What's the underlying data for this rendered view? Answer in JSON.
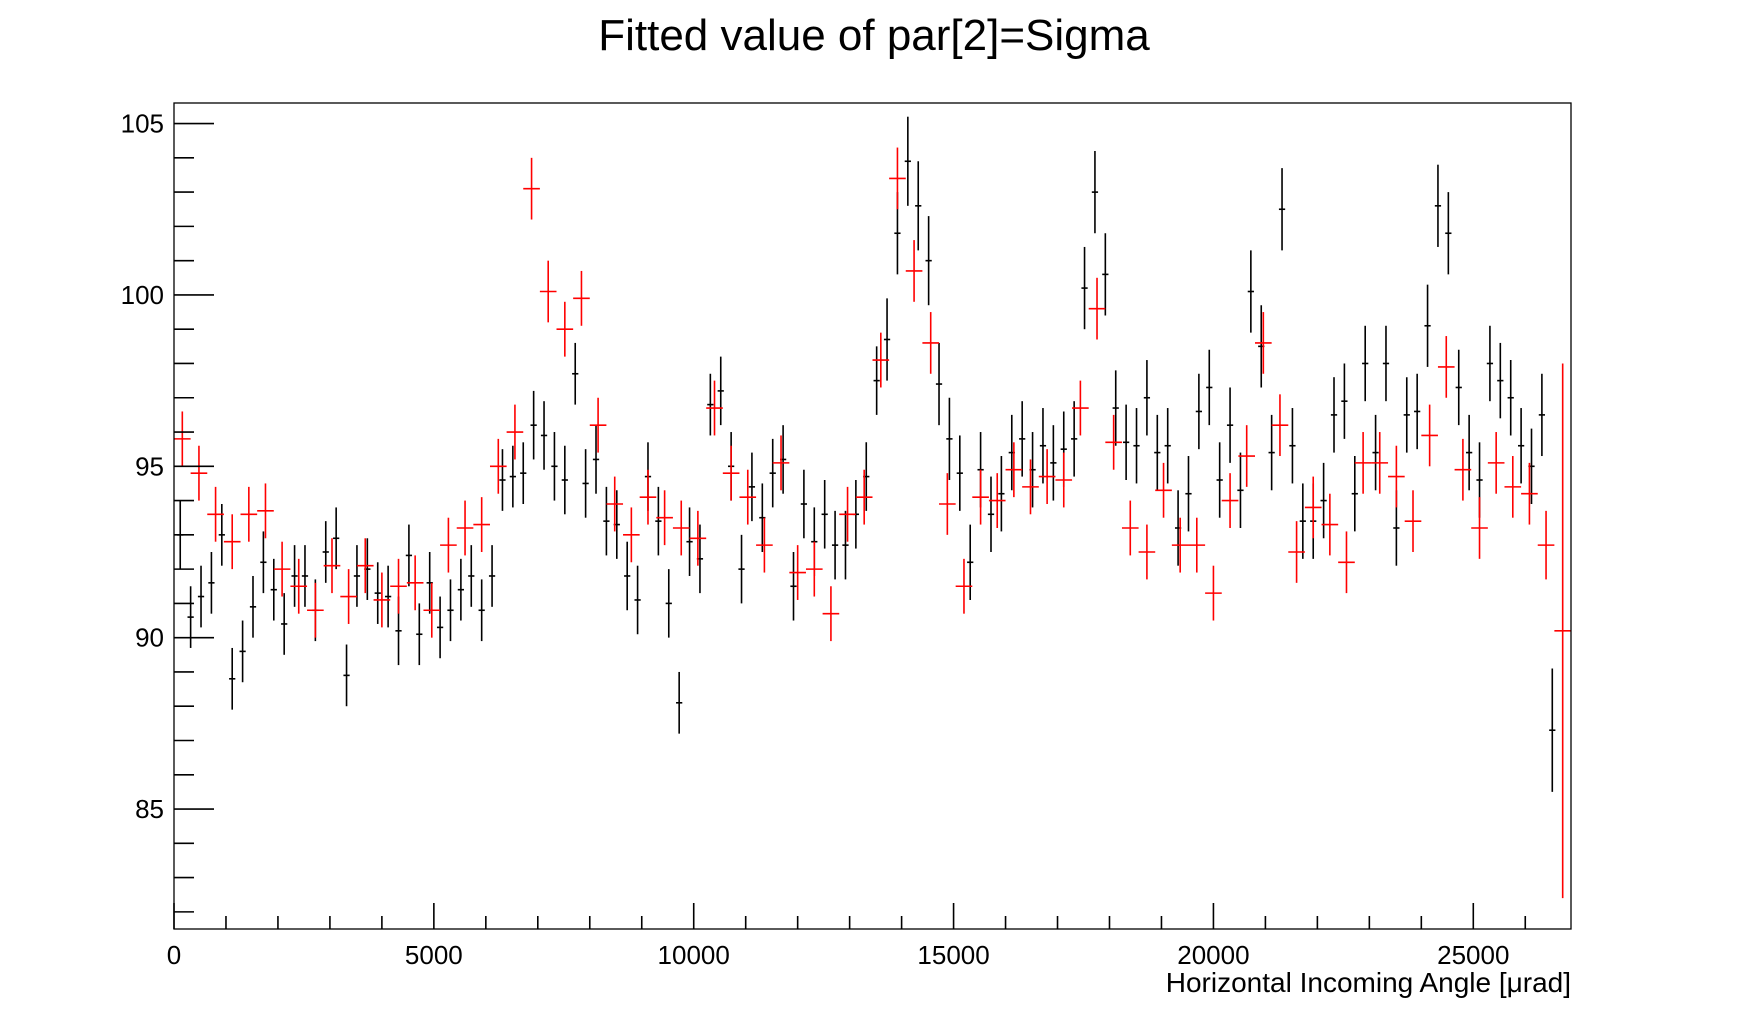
{
  "chart_data": {
    "type": "scatter",
    "title": "Fitted value of par[2]=Sigma",
    "xlabel": "Horizontal Incoming Angle [μrad]",
    "ylabel": "",
    "xlim": [
      0,
      26880
    ],
    "ylim": [
      81.5,
      105.6
    ],
    "x_ticks": [
      0,
      5000,
      10000,
      15000,
      20000,
      25000
    ],
    "y_ticks": [
      85,
      90,
      95,
      100,
      105
    ],
    "grid": false,
    "legend": "none",
    "series": [
      {
        "color": "#000000",
        "x_err": 60,
        "points": [
          [
            120,
            93.0,
            1.0
          ],
          [
            320,
            90.6,
            0.9
          ],
          [
            520,
            91.2,
            0.9
          ],
          [
            720,
            91.6,
            0.9
          ],
          [
            920,
            93.0,
            0.9
          ],
          [
            1120,
            88.8,
            0.9
          ],
          [
            1320,
            89.6,
            0.9
          ],
          [
            1520,
            90.9,
            0.9
          ],
          [
            1720,
            92.2,
            0.9
          ],
          [
            1920,
            91.4,
            0.9
          ],
          [
            2120,
            90.4,
            0.9
          ],
          [
            2320,
            91.8,
            0.9
          ],
          [
            2520,
            91.8,
            0.9
          ],
          [
            2720,
            90.8,
            0.9
          ],
          [
            2920,
            92.5,
            0.9
          ],
          [
            3120,
            92.9,
            0.9
          ],
          [
            3320,
            88.9,
            0.9
          ],
          [
            3520,
            91.8,
            0.9
          ],
          [
            3720,
            92.0,
            0.9
          ],
          [
            3920,
            91.3,
            0.9
          ],
          [
            4120,
            91.2,
            0.9
          ],
          [
            4320,
            90.2,
            1.0
          ],
          [
            4520,
            92.4,
            0.9
          ],
          [
            4720,
            90.1,
            0.9
          ],
          [
            4920,
            91.6,
            0.9
          ],
          [
            5120,
            90.3,
            0.9
          ],
          [
            5320,
            90.8,
            0.9
          ],
          [
            5520,
            91.4,
            0.9
          ],
          [
            5720,
            91.8,
            0.9
          ],
          [
            5920,
            90.8,
            0.9
          ],
          [
            6120,
            91.8,
            0.9
          ],
          [
            6320,
            94.6,
            0.9
          ],
          [
            6520,
            94.7,
            0.9
          ],
          [
            6720,
            94.8,
            0.9
          ],
          [
            6920,
            96.2,
            1.0
          ],
          [
            7120,
            95.9,
            1.0
          ],
          [
            7320,
            95.0,
            1.0
          ],
          [
            7520,
            94.6,
            1.0
          ],
          [
            7720,
            97.7,
            0.9
          ],
          [
            7920,
            94.5,
            1.0
          ],
          [
            8120,
            95.2,
            1.0
          ],
          [
            8320,
            93.4,
            1.0
          ],
          [
            8520,
            93.3,
            1.0
          ],
          [
            8720,
            91.8,
            1.0
          ],
          [
            8920,
            91.1,
            1.0
          ],
          [
            9120,
            94.7,
            1.0
          ],
          [
            9320,
            93.4,
            1.0
          ],
          [
            9520,
            91.0,
            1.0
          ],
          [
            9720,
            88.1,
            0.9
          ],
          [
            9920,
            92.8,
            1.0
          ],
          [
            10120,
            92.3,
            1.0
          ],
          [
            10320,
            96.8,
            0.9
          ],
          [
            10520,
            97.2,
            1.0
          ],
          [
            10720,
            95.0,
            1.0
          ],
          [
            10920,
            92.0,
            1.0
          ],
          [
            11120,
            94.4,
            1.0
          ],
          [
            11320,
            93.5,
            1.0
          ],
          [
            11520,
            94.8,
            1.0
          ],
          [
            11720,
            95.2,
            1.0
          ],
          [
            11920,
            91.5,
            1.0
          ],
          [
            12120,
            93.9,
            1.0
          ],
          [
            12320,
            92.8,
            1.0
          ],
          [
            12520,
            93.6,
            1.0
          ],
          [
            12720,
            92.7,
            1.0
          ],
          [
            12920,
            92.7,
            1.0
          ],
          [
            13120,
            93.6,
            1.0
          ],
          [
            13320,
            94.7,
            1.0
          ],
          [
            13520,
            97.5,
            1.0
          ],
          [
            13720,
            98.7,
            1.2
          ],
          [
            13920,
            101.8,
            1.2
          ],
          [
            14120,
            103.9,
            1.3
          ],
          [
            14320,
            102.6,
            1.3
          ],
          [
            14520,
            101.0,
            1.3
          ],
          [
            14720,
            97.4,
            1.2
          ],
          [
            14920,
            95.8,
            1.2
          ],
          [
            15120,
            94.8,
            1.1
          ],
          [
            15320,
            92.2,
            1.1
          ],
          [
            15520,
            94.9,
            1.1
          ],
          [
            15720,
            93.6,
            1.1
          ],
          [
            15920,
            94.2,
            1.1
          ],
          [
            16120,
            95.4,
            1.1
          ],
          [
            16320,
            95.8,
            1.1
          ],
          [
            16520,
            94.9,
            1.1
          ],
          [
            16720,
            95.6,
            1.1
          ],
          [
            16920,
            95.1,
            1.1
          ],
          [
            17120,
            95.5,
            1.1
          ],
          [
            17320,
            95.8,
            1.1
          ],
          [
            17520,
            100.2,
            1.2
          ],
          [
            17720,
            103.0,
            1.2
          ],
          [
            17920,
            100.6,
            1.2
          ],
          [
            18120,
            96.7,
            1.1
          ],
          [
            18320,
            95.7,
            1.1
          ],
          [
            18520,
            95.6,
            1.1
          ],
          [
            18720,
            97.0,
            1.1
          ],
          [
            18920,
            95.4,
            1.1
          ],
          [
            19120,
            95.6,
            1.1
          ],
          [
            19320,
            93.2,
            1.1
          ],
          [
            19520,
            94.2,
            1.1
          ],
          [
            19720,
            96.6,
            1.1
          ],
          [
            19920,
            97.3,
            1.1
          ],
          [
            20120,
            94.6,
            1.1
          ],
          [
            20320,
            96.2,
            1.1
          ],
          [
            20520,
            94.3,
            1.1
          ],
          [
            20720,
            100.1,
            1.2
          ],
          [
            20920,
            98.5,
            1.2
          ],
          [
            21120,
            95.4,
            1.1
          ],
          [
            21320,
            102.5,
            1.2
          ],
          [
            21520,
            95.6,
            1.1
          ],
          [
            21720,
            93.4,
            1.1
          ],
          [
            21920,
            93.4,
            1.1
          ],
          [
            22120,
            94.0,
            1.1
          ],
          [
            22320,
            96.5,
            1.1
          ],
          [
            22520,
            96.9,
            1.1
          ],
          [
            22720,
            94.2,
            1.1
          ],
          [
            22920,
            98.0,
            1.1
          ],
          [
            23120,
            95.4,
            1.1
          ],
          [
            23320,
            98.0,
            1.1
          ],
          [
            23520,
            93.2,
            1.1
          ],
          [
            23720,
            96.5,
            1.1
          ],
          [
            23920,
            96.6,
            1.1
          ],
          [
            24120,
            99.1,
            1.2
          ],
          [
            24320,
            102.6,
            1.2
          ],
          [
            24520,
            101.8,
            1.2
          ],
          [
            24720,
            97.3,
            1.1
          ],
          [
            24920,
            95.4,
            1.1
          ],
          [
            25120,
            94.6,
            1.1
          ],
          [
            25320,
            98.0,
            1.1
          ],
          [
            25520,
            97.5,
            1.1
          ],
          [
            25720,
            97.0,
            1.1
          ],
          [
            25920,
            95.6,
            1.1
          ],
          [
            26120,
            95.0,
            1.1
          ],
          [
            26320,
            96.5,
            1.2
          ],
          [
            26520,
            87.3,
            1.8
          ]
        ]
      },
      {
        "color": "#ff0000",
        "x_err": 160,
        "points": [
          [
            160,
            95.8,
            0.8
          ],
          [
            480,
            94.8,
            0.8
          ],
          [
            800,
            93.6,
            0.8
          ],
          [
            1120,
            92.8,
            0.8
          ],
          [
            1440,
            93.6,
            0.8
          ],
          [
            1760,
            93.7,
            0.8
          ],
          [
            2080,
            92.0,
            0.8
          ],
          [
            2400,
            91.5,
            0.8
          ],
          [
            2720,
            90.8,
            0.8
          ],
          [
            3040,
            92.1,
            0.8
          ],
          [
            3360,
            91.2,
            0.8
          ],
          [
            3680,
            92.1,
            0.8
          ],
          [
            4000,
            91.1,
            0.8
          ],
          [
            4320,
            91.5,
            0.8
          ],
          [
            4640,
            91.6,
            0.8
          ],
          [
            4960,
            90.8,
            0.8
          ],
          [
            5280,
            92.7,
            0.8
          ],
          [
            5600,
            93.2,
            0.8
          ],
          [
            5920,
            93.3,
            0.8
          ],
          [
            6240,
            95.0,
            0.8
          ],
          [
            6560,
            96.0,
            0.8
          ],
          [
            6880,
            103.1,
            0.9
          ],
          [
            7200,
            100.1,
            0.9
          ],
          [
            7520,
            99.0,
            0.8
          ],
          [
            7840,
            99.9,
            0.8
          ],
          [
            8160,
            96.2,
            0.8
          ],
          [
            8480,
            93.9,
            0.8
          ],
          [
            8800,
            93.0,
            0.8
          ],
          [
            9120,
            94.1,
            0.8
          ],
          [
            9440,
            93.5,
            0.8
          ],
          [
            9760,
            93.2,
            0.8
          ],
          [
            10080,
            92.9,
            0.8
          ],
          [
            10400,
            96.7,
            0.8
          ],
          [
            10720,
            94.8,
            0.8
          ],
          [
            11040,
            94.1,
            0.8
          ],
          [
            11360,
            92.7,
            0.8
          ],
          [
            11680,
            95.1,
            0.8
          ],
          [
            12000,
            91.9,
            0.8
          ],
          [
            12320,
            92.0,
            0.8
          ],
          [
            12640,
            90.7,
            0.8
          ],
          [
            12960,
            93.6,
            0.8
          ],
          [
            13280,
            94.1,
            0.8
          ],
          [
            13600,
            98.1,
            0.8
          ],
          [
            13920,
            103.4,
            0.9
          ],
          [
            14240,
            100.7,
            0.9
          ],
          [
            14560,
            98.6,
            0.9
          ],
          [
            14880,
            93.9,
            0.9
          ],
          [
            15200,
            91.5,
            0.8
          ],
          [
            15520,
            94.1,
            0.8
          ],
          [
            15840,
            94.0,
            0.8
          ],
          [
            16160,
            94.9,
            0.8
          ],
          [
            16480,
            94.4,
            0.8
          ],
          [
            16800,
            94.7,
            0.8
          ],
          [
            17120,
            94.6,
            0.8
          ],
          [
            17440,
            96.7,
            0.8
          ],
          [
            17760,
            99.6,
            0.9
          ],
          [
            18080,
            95.7,
            0.8
          ],
          [
            18400,
            93.2,
            0.8
          ],
          [
            18720,
            92.5,
            0.8
          ],
          [
            19040,
            94.3,
            0.8
          ],
          [
            19360,
            92.7,
            0.8
          ],
          [
            19680,
            92.7,
            0.8
          ],
          [
            20000,
            91.3,
            0.8
          ],
          [
            20320,
            94.0,
            0.8
          ],
          [
            20640,
            95.3,
            0.9
          ],
          [
            20960,
            98.6,
            0.9
          ],
          [
            21280,
            96.2,
            0.9
          ],
          [
            21600,
            92.5,
            0.9
          ],
          [
            21920,
            93.8,
            0.9
          ],
          [
            22240,
            93.3,
            0.9
          ],
          [
            22560,
            92.2,
            0.9
          ],
          [
            22880,
            95.1,
            0.9
          ],
          [
            23200,
            95.1,
            0.9
          ],
          [
            23520,
            94.7,
            0.9
          ],
          [
            23840,
            93.4,
            0.9
          ],
          [
            24160,
            95.9,
            0.9
          ],
          [
            24480,
            97.9,
            0.9
          ],
          [
            24800,
            94.9,
            0.9
          ],
          [
            25120,
            93.2,
            0.9
          ],
          [
            25440,
            95.1,
            0.9
          ],
          [
            25760,
            94.4,
            0.9
          ],
          [
            26080,
            94.2,
            0.9
          ],
          [
            26400,
            92.7,
            1.0
          ],
          [
            26720,
            90.2,
            7.8
          ]
        ]
      }
    ]
  }
}
